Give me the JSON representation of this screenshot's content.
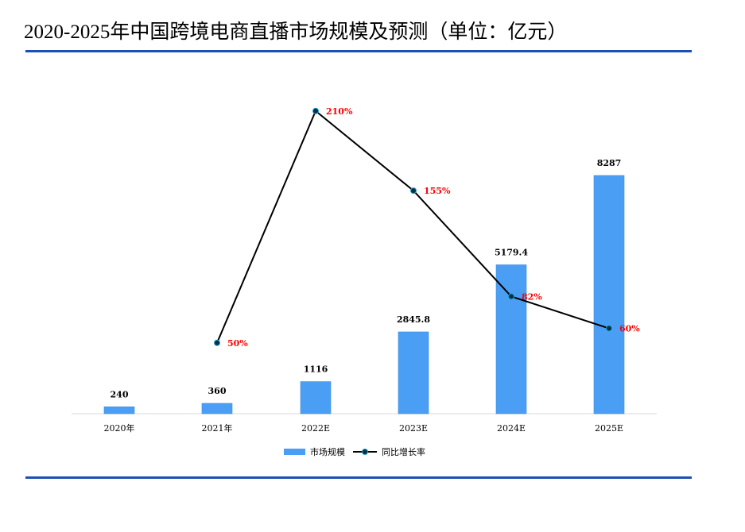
{
  "chart_data": {
    "type": "bar+line",
    "title": "2020-2025年中国跨境电商直播市场规模及预测（单位：亿元）",
    "categories": [
      "2020年",
      "2021年",
      "2022E",
      "2023E",
      "2024E",
      "2025E"
    ],
    "series": [
      {
        "name": "市场规模",
        "type": "bar",
        "values": [
          240,
          360,
          1116,
          2845.8,
          5179.4,
          8287
        ],
        "labels": [
          "240",
          "360",
          "1116",
          "2845.8",
          "5179.4",
          "8287"
        ],
        "color": "#4a9ff5"
      },
      {
        "name": "同比增长率",
        "type": "line",
        "values": [
          null,
          50,
          210,
          155,
          82,
          60
        ],
        "labels": [
          "",
          "50%",
          "210%",
          "155%",
          "82%",
          "60%"
        ],
        "color": "#000000",
        "label_color": "#ff0000"
      }
    ],
    "legend": "bottom",
    "grid": false
  }
}
